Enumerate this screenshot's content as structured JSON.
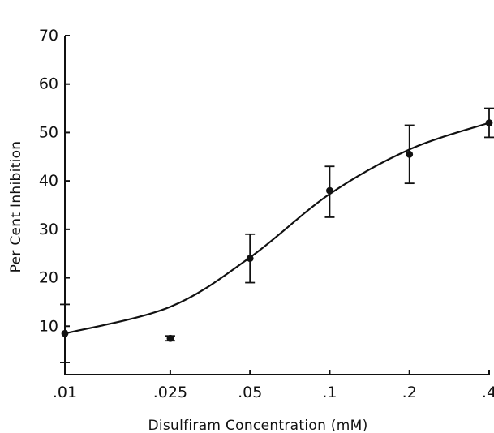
{
  "chart_data": {
    "type": "scatter",
    "xlabel": "Disulfiram Concentration (mM)",
    "ylabel": "Per Cent Inhibition",
    "x_tick_labels": [
      ".01",
      ".025",
      ".05",
      ".1",
      ".2",
      ".4"
    ],
    "y_ticks": [
      10,
      20,
      30,
      40,
      50,
      60,
      70
    ],
    "ylim": [
      0,
      70
    ],
    "x_scale": "log",
    "grid": false,
    "points": [
      {
        "x": 0.01,
        "y": 8.5,
        "err_low": 2.5,
        "err_high": 14.5
      },
      {
        "x": 0.025,
        "y": 7.5,
        "err_low": 7.0,
        "err_high": 8.0
      },
      {
        "x": 0.05,
        "y": 24,
        "err_low": 19,
        "err_high": 29
      },
      {
        "x": 0.1,
        "y": 38,
        "err_low": 32.5,
        "err_high": 43
      },
      {
        "x": 0.2,
        "y": 45.5,
        "err_low": 39.5,
        "err_high": 51.5
      },
      {
        "x": 0.4,
        "y": 52,
        "err_low": 49,
        "err_high": 55
      }
    ],
    "curve": [
      [
        0.01,
        8.5
      ],
      [
        0.025,
        14
      ],
      [
        0.05,
        24.2
      ],
      [
        0.1,
        37.3
      ],
      [
        0.2,
        46.5
      ],
      [
        0.4,
        52
      ]
    ]
  }
}
